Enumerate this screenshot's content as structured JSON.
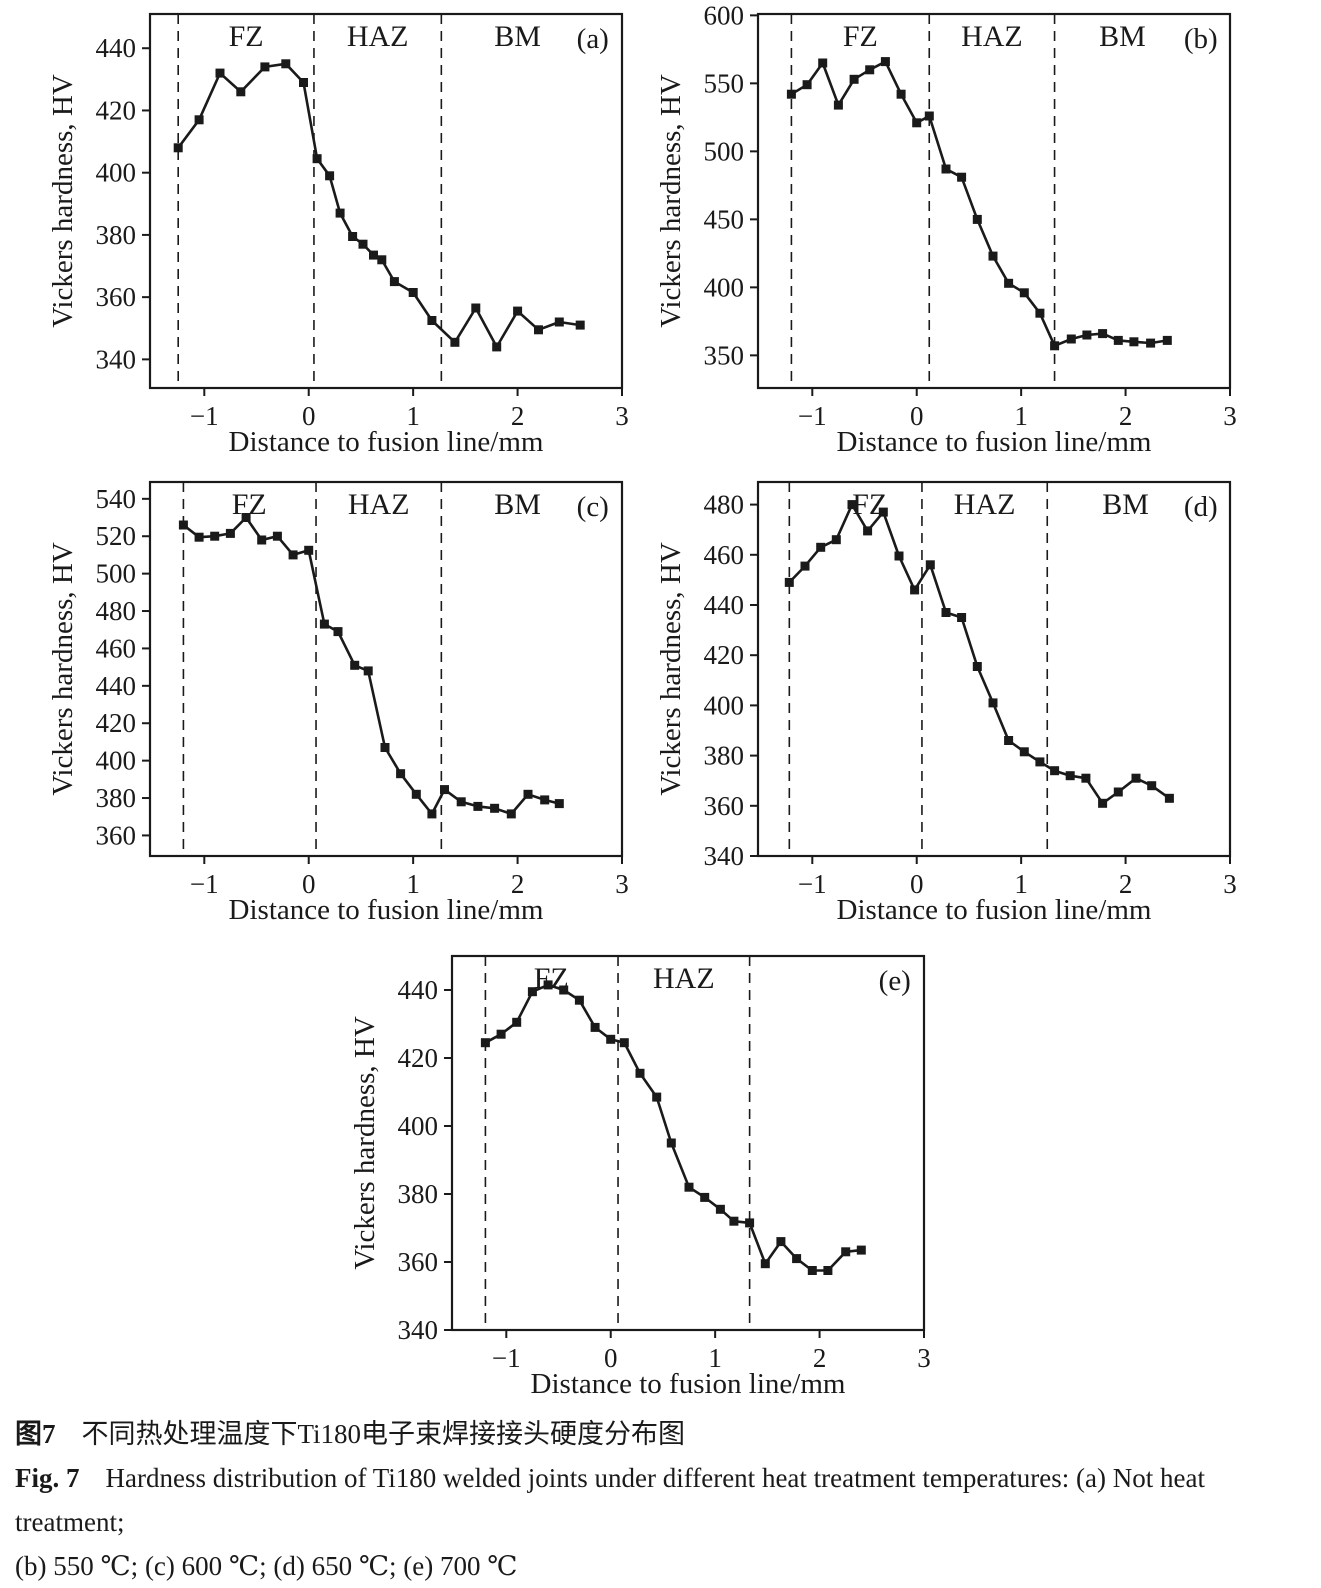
{
  "figure": {
    "caption_zh_label": "图7",
    "caption_zh_text": "不同热处理温度下Ti180电子束焊接接头硬度分布图",
    "caption_en_label": "Fig. 7",
    "caption_en_line1": "Hardness distribution of Ti180 welded joints under different heat treatment temperatures: (a) Not heat treatment;",
    "caption_en_line2": "(b) 550 ℃; (c) 600 ℃; (d) 650 ℃; (e) 700 ℃"
  },
  "style": {
    "ink_color": "#1a1a1a",
    "background_color": "#ffffff"
  },
  "chart_data": [
    {
      "id": "chart-a",
      "type": "line",
      "panel_label": "(a)",
      "xlabel": "Distance to fusion line/mm",
      "ylabel": "Vickers hardness, HV",
      "xlim": [
        -1.52,
        3.0
      ],
      "ylim": [
        330.8,
        451
      ],
      "xticks": [
        -1,
        0,
        1,
        2,
        3
      ],
      "yticks": [
        340,
        360,
        380,
        400,
        420,
        440
      ],
      "dashed_lines": [
        -1.25,
        0.05,
        1.27
      ],
      "zones": [
        {
          "label": "FZ",
          "x": -0.6
        },
        {
          "label": "HAZ",
          "x": 0.66
        },
        {
          "label": "BM",
          "x": 2.0
        }
      ],
      "grid": false,
      "legend": "none",
      "points": [
        [
          -1.25,
          408
        ],
        [
          -1.05,
          417
        ],
        [
          -0.85,
          432
        ],
        [
          -0.65,
          426
        ],
        [
          -0.42,
          434
        ],
        [
          -0.22,
          435
        ],
        [
          -0.05,
          429
        ],
        [
          0.08,
          404.5
        ],
        [
          0.2,
          399
        ],
        [
          0.3,
          387
        ],
        [
          0.42,
          379.5
        ],
        [
          0.52,
          377
        ],
        [
          0.62,
          373.5
        ],
        [
          0.7,
          372
        ],
        [
          0.82,
          365
        ],
        [
          1.0,
          361.5
        ],
        [
          1.18,
          352.5
        ],
        [
          1.4,
          345.5
        ],
        [
          1.6,
          356.5
        ],
        [
          1.8,
          344
        ],
        [
          2.0,
          355.5
        ],
        [
          2.2,
          349.5
        ],
        [
          2.4,
          352
        ],
        [
          2.6,
          351
        ]
      ]
    },
    {
      "id": "chart-b",
      "type": "line",
      "panel_label": "(b)",
      "xlabel": "Distance to fusion line/mm",
      "ylabel": "Vickers hardness, HV",
      "xlim": [
        -1.52,
        3.0
      ],
      "ylim": [
        326,
        601
      ],
      "xticks": [
        -1,
        0,
        1,
        2,
        3
      ],
      "yticks": [
        350,
        400,
        450,
        500,
        550,
        600
      ],
      "dashed_lines": [
        -1.2,
        0.12,
        1.32
      ],
      "zones": [
        {
          "label": "FZ",
          "x": -0.54
        },
        {
          "label": "HAZ",
          "x": 0.72
        },
        {
          "label": "BM",
          "x": 1.97
        }
      ],
      "grid": false,
      "legend": "none",
      "points": [
        [
          -1.2,
          542
        ],
        [
          -1.05,
          549
        ],
        [
          -0.9,
          565
        ],
        [
          -0.75,
          534
        ],
        [
          -0.6,
          553
        ],
        [
          -0.45,
          560
        ],
        [
          -0.3,
          566
        ],
        [
          -0.15,
          542
        ],
        [
          0.0,
          521
        ],
        [
          0.12,
          526
        ],
        [
          0.28,
          487
        ],
        [
          0.43,
          481
        ],
        [
          0.58,
          450
        ],
        [
          0.73,
          423
        ],
        [
          0.88,
          403
        ],
        [
          1.03,
          396
        ],
        [
          1.18,
          381
        ],
        [
          1.32,
          357
        ],
        [
          1.48,
          362
        ],
        [
          1.63,
          365
        ],
        [
          1.78,
          366
        ],
        [
          1.93,
          361
        ],
        [
          2.08,
          360
        ],
        [
          2.24,
          359
        ],
        [
          2.4,
          361
        ]
      ]
    },
    {
      "id": "chart-c",
      "type": "line",
      "panel_label": "(c)",
      "xlabel": "Distance to fusion line/mm",
      "ylabel": "Vickers hardness, HV",
      "xlim": [
        -1.52,
        3.0
      ],
      "ylim": [
        349,
        549
      ],
      "xticks": [
        -1,
        0,
        1,
        2,
        3
      ],
      "yticks": [
        360,
        380,
        400,
        420,
        440,
        460,
        480,
        500,
        520,
        540
      ],
      "dashed_lines": [
        -1.2,
        0.07,
        1.27
      ],
      "zones": [
        {
          "label": "FZ",
          "x": -0.57
        },
        {
          "label": "HAZ",
          "x": 0.67
        },
        {
          "label": "BM",
          "x": 2.0
        }
      ],
      "grid": false,
      "legend": "none",
      "points": [
        [
          -1.2,
          526
        ],
        [
          -1.05,
          519.5
        ],
        [
          -0.9,
          520
        ],
        [
          -0.75,
          521.5
        ],
        [
          -0.6,
          530
        ],
        [
          -0.45,
          518
        ],
        [
          -0.3,
          520
        ],
        [
          -0.15,
          510
        ],
        [
          0.0,
          512.5
        ],
        [
          0.15,
          473
        ],
        [
          0.28,
          469
        ],
        [
          0.44,
          451
        ],
        [
          0.57,
          448
        ],
        [
          0.73,
          407
        ],
        [
          0.88,
          393
        ],
        [
          1.03,
          382
        ],
        [
          1.18,
          371.5
        ],
        [
          1.3,
          384.5
        ],
        [
          1.46,
          378
        ],
        [
          1.62,
          375.5
        ],
        [
          1.78,
          374.5
        ],
        [
          1.94,
          371.5
        ],
        [
          2.1,
          382
        ],
        [
          2.26,
          379
        ],
        [
          2.4,
          377
        ]
      ]
    },
    {
      "id": "chart-d",
      "type": "line",
      "panel_label": "(d)",
      "xlabel": "Distance to fusion line/mm",
      "ylabel": "Vickers hardness, HV",
      "xlim": [
        -1.52,
        3.0
      ],
      "ylim": [
        340,
        489
      ],
      "xticks": [
        -1,
        0,
        1,
        2,
        3
      ],
      "yticks": [
        340,
        360,
        380,
        400,
        420,
        440,
        460,
        480
      ],
      "dashed_lines": [
        -1.22,
        0.05,
        1.25
      ],
      "zones": [
        {
          "label": "FZ",
          "x": -0.45
        },
        {
          "label": "HAZ",
          "x": 0.65
        },
        {
          "label": "BM",
          "x": 2.0
        }
      ],
      "grid": false,
      "legend": "none",
      "points": [
        [
          -1.22,
          449
        ],
        [
          -1.07,
          455.5
        ],
        [
          -0.92,
          463
        ],
        [
          -0.77,
          466
        ],
        [
          -0.62,
          480
        ],
        [
          -0.47,
          469.5
        ],
        [
          -0.32,
          477
        ],
        [
          -0.17,
          459.5
        ],
        [
          -0.02,
          446
        ],
        [
          0.13,
          456
        ],
        [
          0.28,
          437
        ],
        [
          0.43,
          435
        ],
        [
          0.58,
          415.5
        ],
        [
          0.73,
          401
        ],
        [
          0.88,
          386
        ],
        [
          1.03,
          381.5
        ],
        [
          1.18,
          377.5
        ],
        [
          1.32,
          374
        ],
        [
          1.47,
          372
        ],
        [
          1.62,
          371
        ],
        [
          1.78,
          361
        ],
        [
          1.93,
          365.5
        ],
        [
          2.1,
          371
        ],
        [
          2.25,
          368
        ],
        [
          2.42,
          363
        ]
      ]
    },
    {
      "id": "chart-e",
      "type": "line",
      "panel_label": "(e)",
      "xlabel": "Distance to fusion line/mm",
      "ylabel": "Vickers hardness, HV",
      "xlim": [
        -1.52,
        3.0
      ],
      "ylim": [
        340,
        450
      ],
      "xticks": [
        -1,
        0,
        1,
        2,
        3
      ],
      "yticks": [
        340,
        360,
        380,
        400,
        420,
        440
      ],
      "dashed_lines": [
        -1.2,
        0.07,
        1.33
      ],
      "zones": [
        {
          "label": "FZ",
          "x": -0.57
        },
        {
          "label": "HAZ",
          "x": 0.7
        }
      ],
      "grid": false,
      "legend": "none",
      "points": [
        [
          -1.2,
          424.5
        ],
        [
          -1.05,
          427
        ],
        [
          -0.9,
          430.5
        ],
        [
          -0.75,
          439.5
        ],
        [
          -0.6,
          441.5
        ],
        [
          -0.45,
          440
        ],
        [
          -0.3,
          437
        ],
        [
          -0.15,
          429
        ],
        [
          0.0,
          425.5
        ],
        [
          0.13,
          424.5
        ],
        [
          0.28,
          415.5
        ],
        [
          0.44,
          408.5
        ],
        [
          0.58,
          395
        ],
        [
          0.75,
          382
        ],
        [
          0.9,
          379
        ],
        [
          1.05,
          375.5
        ],
        [
          1.18,
          372
        ],
        [
          1.33,
          371.5
        ],
        [
          1.48,
          359.5
        ],
        [
          1.63,
          366
        ],
        [
          1.78,
          361
        ],
        [
          1.93,
          357.5
        ],
        [
          2.08,
          357.5
        ],
        [
          2.25,
          363
        ],
        [
          2.4,
          363.5
        ]
      ]
    }
  ]
}
